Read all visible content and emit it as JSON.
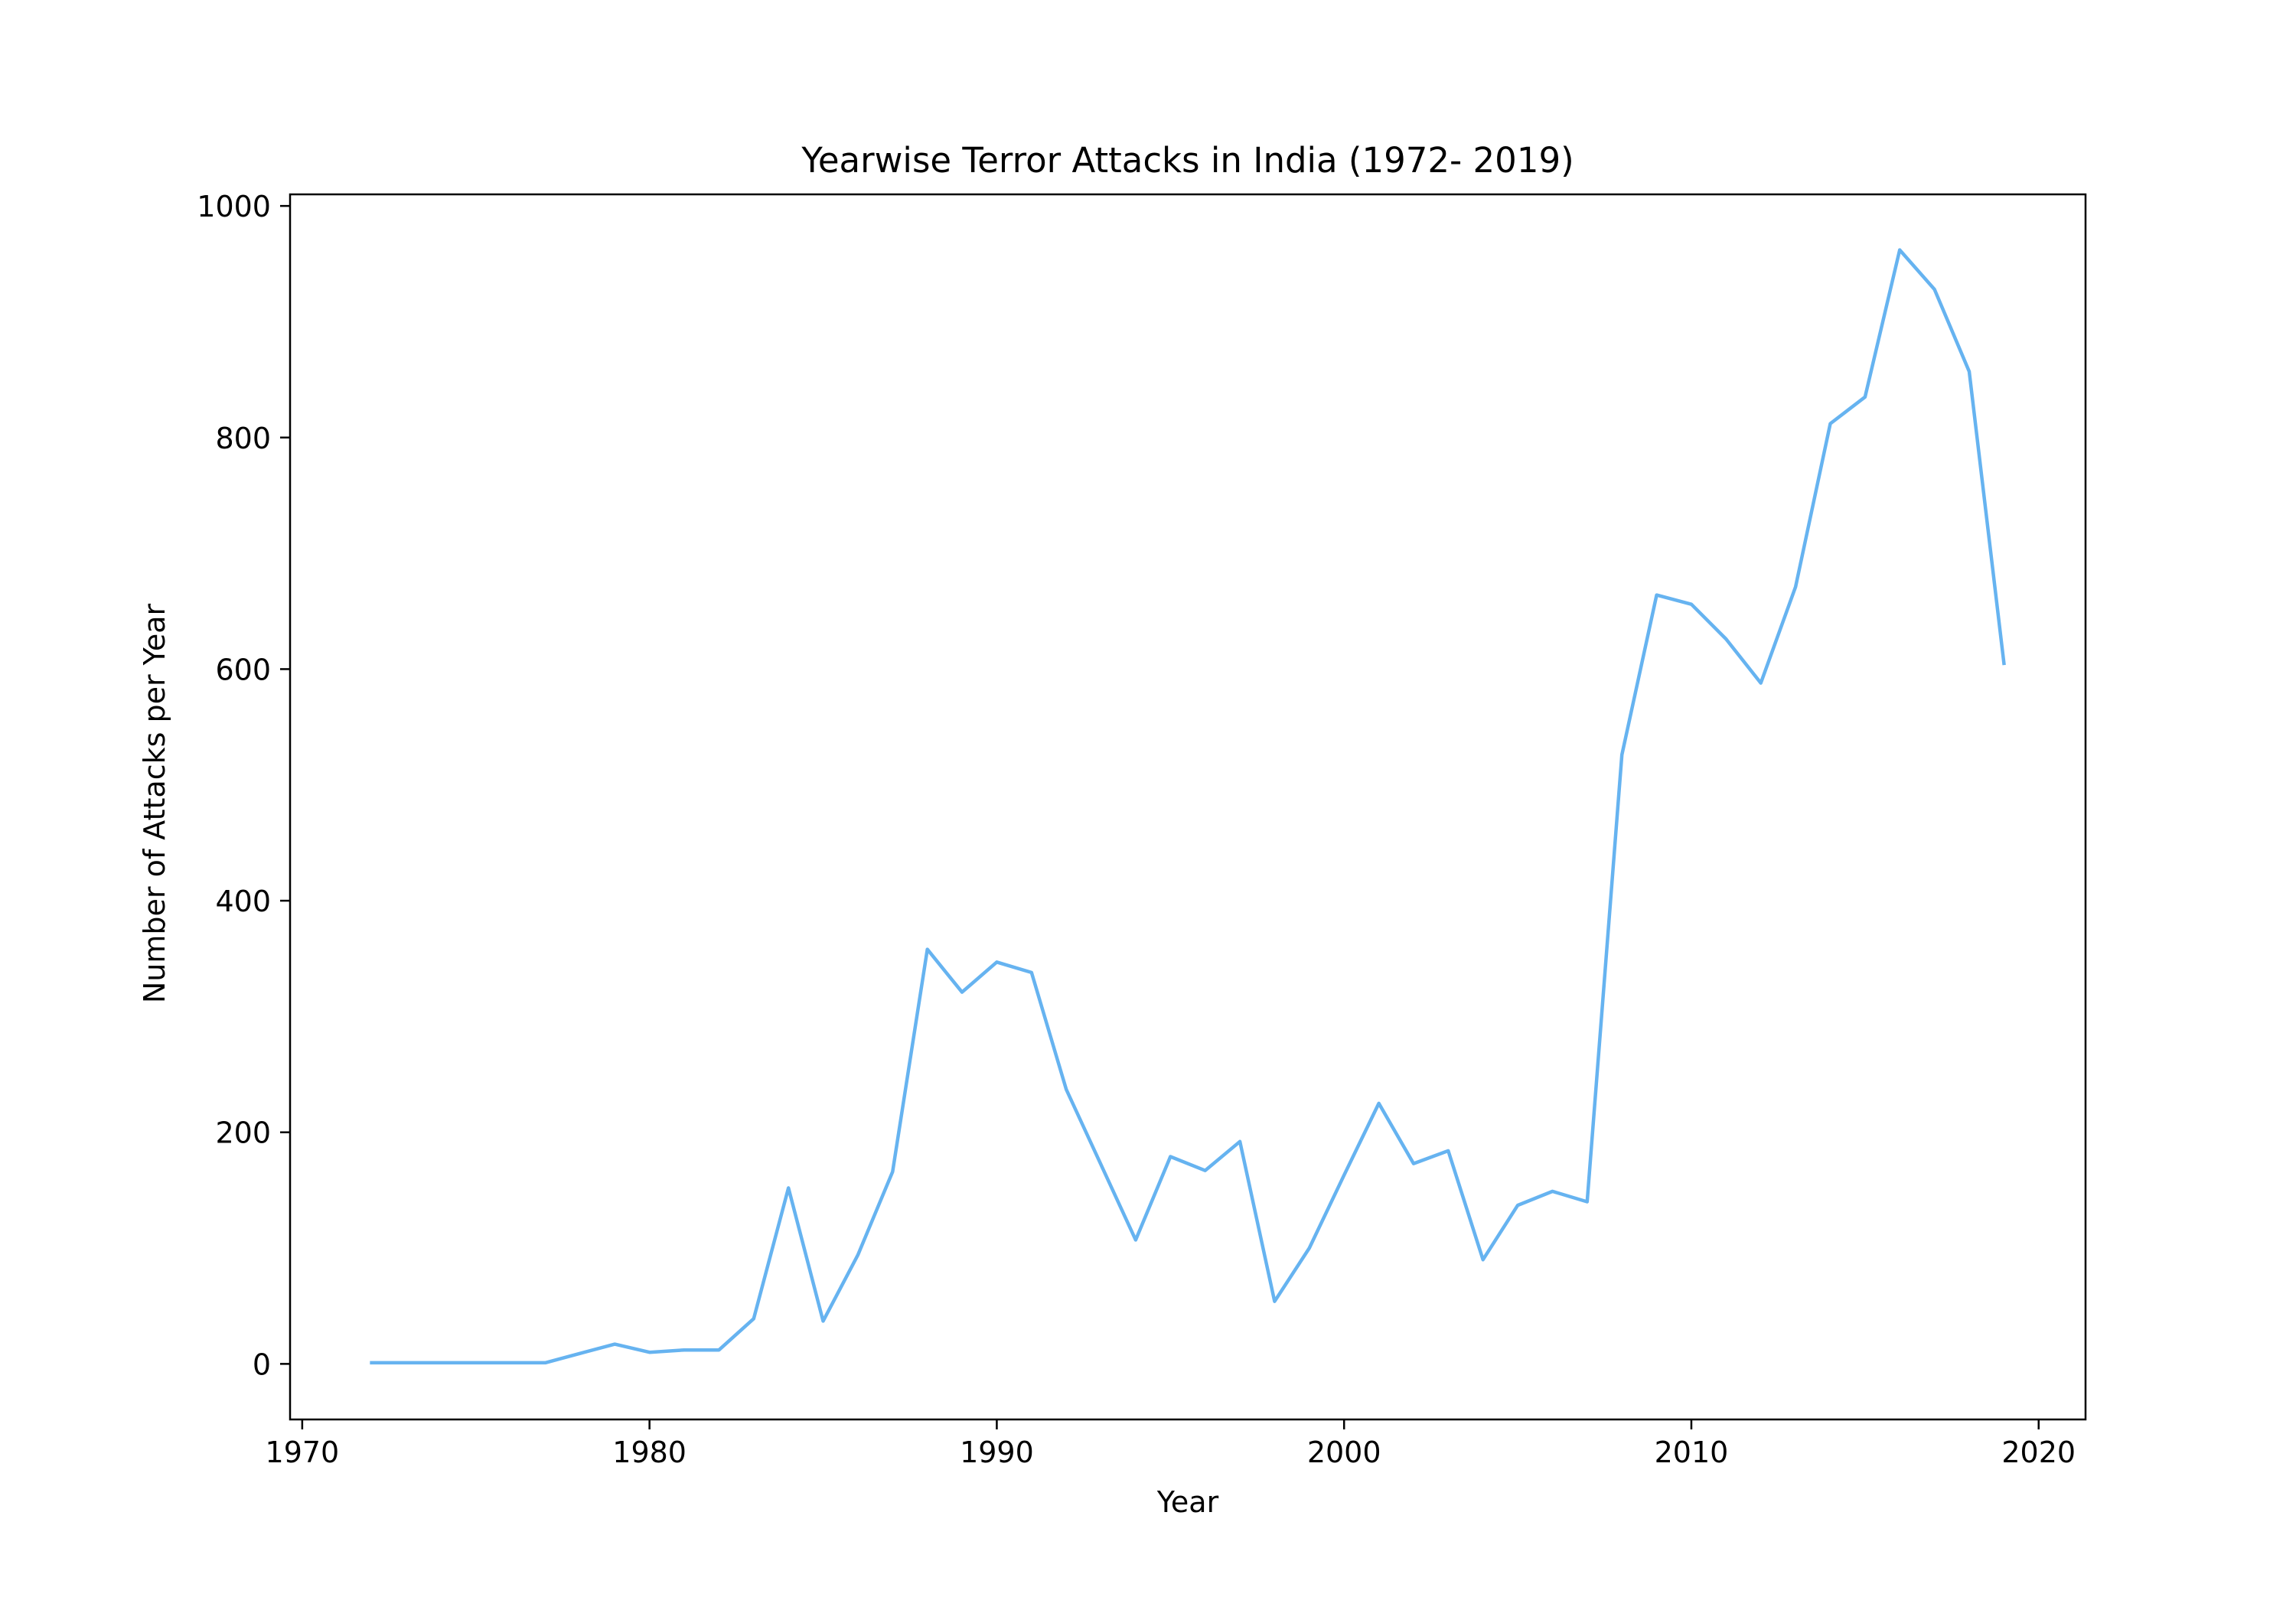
{
  "chart_data": {
    "type": "line",
    "title": "Yearwise Terror Attacks in India (1972- 2019)",
    "xlabel": "Year",
    "ylabel": "Number of Attacks per Year",
    "xlim": [
      1969.65,
      2021.35
    ],
    "ylim": [
      -48,
      1010
    ],
    "xticks": [
      1970,
      1980,
      1990,
      2000,
      2010,
      2020
    ],
    "yticks": [
      0,
      200,
      400,
      600,
      800,
      1000
    ],
    "grid": false,
    "legend": "none",
    "series": [
      {
        "color": "#66b3f0",
        "x": [
          1972,
          1973,
          1974,
          1975,
          1976,
          1977,
          1978,
          1979,
          1980,
          1981,
          1982,
          1983,
          1984,
          1985,
          1986,
          1987,
          1988,
          1989,
          1990,
          1991,
          1992,
          1993,
          1994,
          1995,
          1996,
          1997,
          1998,
          1999,
          2000,
          2001,
          2002,
          2003,
          2004,
          2005,
          2006,
          2007,
          2008,
          2009,
          2010,
          2011,
          2012,
          2013,
          2014,
          2015,
          2016,
          2017,
          2018,
          2019
        ],
        "y": [
          1,
          1,
          1,
          1,
          1,
          1,
          9,
          17,
          10,
          12,
          12,
          39,
          152,
          37,
          94,
          166,
          358,
          321,
          347,
          338,
          237,
          172,
          107,
          179,
          167,
          192,
          54,
          100,
          163,
          225,
          173,
          184,
          90,
          137,
          149,
          140,
          526,
          664,
          656,
          626,
          588,
          671,
          812,
          835,
          962,
          928,
          857,
          605
        ]
      }
    ]
  }
}
